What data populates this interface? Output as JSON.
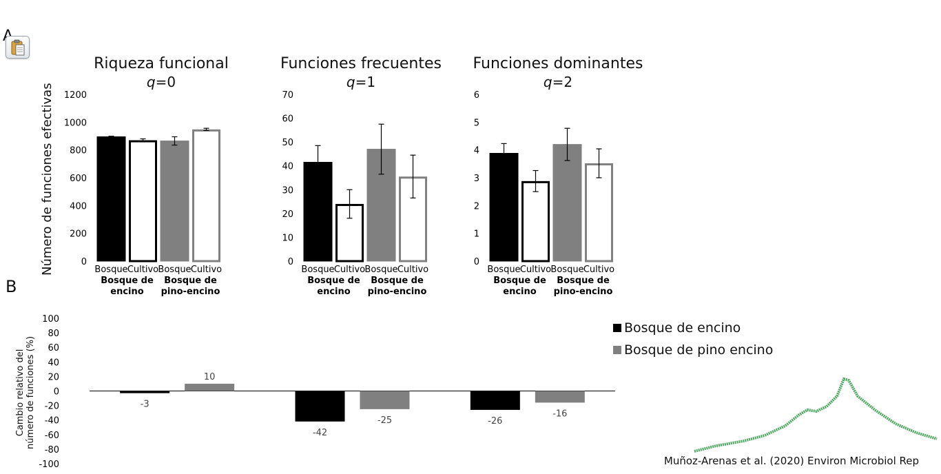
{
  "panel_labels": {
    "a": "A",
    "b": "B"
  },
  "paste_icon": "clipboard-paste-icon",
  "shared_ylabel": "Número de funciones efectivas",
  "citation": "Muñoz-Arenas et al. (2020) Environ Microbiol Rep",
  "colors": {
    "black": "#000000",
    "gray": "#808080",
    "white": "#ffffff",
    "mountain": "#2e9a45"
  },
  "chart_data": [
    {
      "type": "bar",
      "title": "Riqueza funcional",
      "q_label": "q",
      "q_value": "=0",
      "ylim": [
        0,
        1200
      ],
      "ticks": [
        "0",
        "200",
        "400",
        "600",
        "800",
        "1000",
        "1200"
      ],
      "categories": [
        "Bosque",
        "Cultivo",
        "Bosque",
        "Cultivo"
      ],
      "groups": [
        "Bosque de encino",
        "Bosque de pino-encino"
      ],
      "values": [
        895,
        870,
        865,
        948
      ],
      "errors": [
        4,
        10,
        30,
        8
      ],
      "styles": [
        "black",
        "white-black",
        "gray",
        "white-gray"
      ]
    },
    {
      "type": "bar",
      "title": "Funciones frecuentes",
      "q_label": "q",
      "q_value": "=1",
      "ylim": [
        0,
        70
      ],
      "ticks": [
        "0",
        "10",
        "20",
        "30",
        "40",
        "50",
        "60",
        "70"
      ],
      "categories": [
        "Bosque",
        "Cultivo",
        "Bosque",
        "Cultivo"
      ],
      "groups": [
        "Bosque de encino",
        "Bosque de pino-encino"
      ],
      "values": [
        41.5,
        24,
        47,
        35.5
      ],
      "errors": [
        7,
        6,
        10.5,
        9
      ],
      "styles": [
        "black",
        "white-black",
        "gray",
        "white-gray"
      ]
    },
    {
      "type": "bar",
      "title": "Funciones dominantes",
      "q_label": "q",
      "q_value": "=2",
      "ylim": [
        0,
        6
      ],
      "ticks": [
        "0",
        "1",
        "2",
        "3",
        "4",
        "5",
        "6"
      ],
      "categories": [
        "Bosque",
        "Cultivo",
        "Bosque",
        "Cultivo"
      ],
      "groups": [
        "Bosque de encino",
        "Bosque de pino-encino"
      ],
      "values": [
        3.88,
        2.88,
        4.2,
        3.52
      ],
      "errors": [
        0.35,
        0.38,
        0.58,
        0.52
      ],
      "styles": [
        "black",
        "white-black",
        "gray",
        "white-gray"
      ]
    },
    {
      "type": "bar",
      "ylabel": "Cambio relativo del número de funciones (%)",
      "ylabel_lines": [
        "Cambio relativo del",
        "número de funciones (%)"
      ],
      "ylim": [
        -100,
        100
      ],
      "ticks": [
        "-100",
        "-80",
        "-60",
        "-40",
        "-20",
        "0",
        "20",
        "40",
        "60",
        "80",
        "100"
      ],
      "series": [
        {
          "name": "Bosque de encino",
          "values": [
            -3,
            -42,
            -26
          ],
          "labels": [
            "-3",
            "-42",
            "-26"
          ],
          "color": "#000000"
        },
        {
          "name": "Bosque de pino encino",
          "values": [
            10,
            -25,
            -16
          ],
          "labels": [
            "10",
            "-25",
            "-16"
          ],
          "color": "#808080"
        }
      ]
    }
  ]
}
